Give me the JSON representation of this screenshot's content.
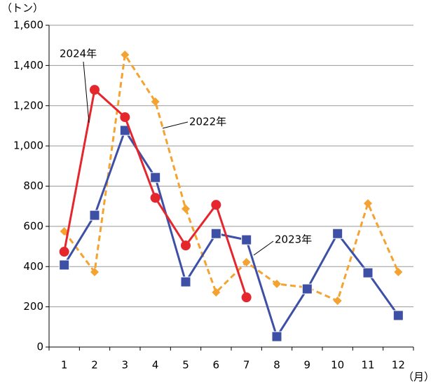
{
  "chart_data": {
    "type": "line",
    "unit_y": "（トン）",
    "unit_x": "（月）",
    "categories": [
      "1",
      "2",
      "3",
      "4",
      "5",
      "6",
      "7",
      "8",
      "9",
      "10",
      "11",
      "12"
    ],
    "series": [
      {
        "name": "2022年",
        "color": "#f4a330",
        "marker": "diamond",
        "dashed": true,
        "values": [
          575,
          373,
          1453,
          1220,
          687,
          272,
          422,
          314,
          296,
          230,
          714,
          373
        ]
      },
      {
        "name": "2023年",
        "color": "#3e50a6",
        "marker": "square",
        "dashed": false,
        "values": [
          408,
          655,
          1077,
          843,
          324,
          564,
          533,
          52,
          289,
          564,
          369,
          157
        ]
      },
      {
        "name": "2024年",
        "color": "#e6262d",
        "marker": "circle",
        "dashed": false,
        "values": [
          474,
          1279,
          1143,
          742,
          505,
          707,
          247,
          null,
          null,
          null,
          null,
          null
        ]
      }
    ],
    "ylim": [
      0,
      1600
    ],
    "yticks": [
      0,
      200,
      400,
      600,
      800,
      {
        "value": 1000,
        "label": "1,000"
      },
      {
        "value": 1200,
        "label": "1,200"
      },
      {
        "value": 1400,
        "label": "1,400"
      },
      {
        "value": 1600,
        "label": "1,600"
      }
    ],
    "grid": true
  }
}
